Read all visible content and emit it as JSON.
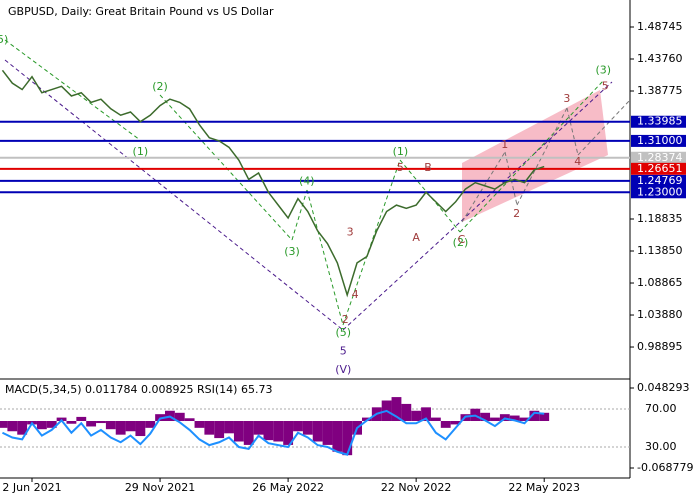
{
  "chart_data": {
    "type": "line",
    "title": "GBPUSD, Daily:  Great Britain Pound vs US Dollar",
    "categories": [
      null,
      null,
      null,
      "2 Jun 2021",
      null,
      null,
      null,
      null,
      null,
      null,
      null,
      null,
      null,
      null,
      null,
      null,
      "29 Nov 2021",
      null,
      null,
      null,
      null,
      null,
      null,
      null,
      null,
      null,
      null,
      null,
      null,
      "26 May 2022",
      null,
      null,
      null,
      null,
      null,
      null,
      null,
      null,
      null,
      null,
      null,
      null,
      "22 Nov 2022",
      null,
      null,
      null,
      null,
      null,
      null,
      null,
      null,
      null,
      null,
      null,
      null,
      "22 May 2023"
    ],
    "series": [
      {
        "name": "GBPUSD",
        "color": "#3c6b2c",
        "values": [
          1.42,
          1.4,
          1.39,
          1.41,
          1.385,
          1.39,
          1.395,
          1.38,
          1.385,
          1.37,
          1.375,
          1.36,
          1.35,
          1.355,
          1.34,
          1.35,
          1.365,
          1.375,
          1.37,
          1.36,
          1.335,
          1.315,
          1.31,
          1.3,
          1.28,
          1.25,
          1.26,
          1.23,
          1.21,
          1.19,
          1.22,
          1.2,
          1.17,
          1.15,
          1.12,
          1.07,
          1.12,
          1.13,
          1.17,
          1.2,
          1.21,
          1.205,
          1.21,
          1.23,
          1.215,
          1.2,
          1.215,
          1.235,
          1.245,
          1.24,
          1.235,
          1.245,
          1.25,
          1.245,
          1.265,
          1.27
        ]
      }
    ],
    "ylim": [
      0.9407,
      1.5217
    ],
    "yticks": [
      1.48745,
      {
        "value": 1.4376,
        "label": "1.43760"
      },
      1.38775,
      1.18835,
      {
        "value": 1.1385,
        "label": "1.13850"
      },
      1.08865,
      {
        "value": 1.0388,
        "label": "1.03880"
      },
      0.98895
    ],
    "levels": [
      {
        "value": 1.33985,
        "color": "#0000b4"
      },
      {
        "value": 1.31,
        "label": "1.31000",
        "color": "#0000b4"
      },
      {
        "value": 1.28374,
        "color": "#c0c0c0"
      },
      {
        "value": 1.26651,
        "color": "#e00000"
      },
      {
        "value": 1.24769,
        "color": "#0000b4"
      },
      {
        "value": 1.23,
        "label": "1.23000",
        "color": "#0000b4"
      }
    ],
    "annotations": [
      {
        "text": "(5)",
        "x": -0.2,
        "y": 1.467,
        "color": "#2a9a2a"
      },
      {
        "text": "(2)",
        "x": 16,
        "y": 1.394,
        "color": "#2a9a2a"
      },
      {
        "text": "(1)",
        "x": 14,
        "y": 1.293,
        "color": "#2a9a2a"
      },
      {
        "text": "(1)",
        "x": 40.4,
        "y": 1.293,
        "color": "#2a9a2a"
      },
      {
        "text": "(4)",
        "x": 30.9,
        "y": 1.247,
        "color": "#2a9a2a"
      },
      {
        "text": "(3)",
        "x": 29.4,
        "y": 1.137,
        "color": "#2a9a2a"
      },
      {
        "text": "(5)",
        "x": 34.6,
        "y": 1.011,
        "color": "#2a9a2a"
      },
      {
        "text": "(2)",
        "x": 46.5,
        "y": 1.151,
        "color": "#2a9a2a"
      },
      {
        "text": "(3)",
        "x": 61,
        "y": 1.42,
        "color": "#2a9a2a"
      },
      {
        "text": "5",
        "x": 40.4,
        "y": 1.268,
        "color": "#a03c3c"
      },
      {
        "text": "B",
        "x": 43.2,
        "y": 1.268,
        "color": "#a03c3c"
      },
      {
        "text": "A",
        "x": 42,
        "y": 1.159,
        "color": "#a03c3c"
      },
      {
        "text": "3",
        "x": 35.3,
        "y": 1.167,
        "color": "#a03c3c"
      },
      {
        "text": "4",
        "x": 35.8,
        "y": 1.07,
        "color": "#a03c3c"
      },
      {
        "text": "2",
        "x": 34.8,
        "y": 1.031,
        "color": "#a03c3c"
      },
      {
        "text": "C",
        "x": 46.6,
        "y": 1.156,
        "color": "#a03c3c"
      },
      {
        "text": "1",
        "x": 51,
        "y": 1.304,
        "color": "#a03c3c"
      },
      {
        "text": "2",
        "x": 52.2,
        "y": 1.196,
        "color": "#a03c3c"
      },
      {
        "text": "3",
        "x": 57.3,
        "y": 1.375,
        "color": "#a03c3c"
      },
      {
        "text": "4",
        "x": 58.4,
        "y": 1.277,
        "color": "#a03c3c"
      },
      {
        "text": "5",
        "x": 61.2,
        "y": 1.395,
        "color": "#a03c3c"
      },
      {
        "text": "5",
        "x": 34.6,
        "y": 0.982,
        "color": "#4b1b8c"
      },
      {
        "text": "(V)",
        "x": 34.6,
        "y": 0.953,
        "color": "#4b1b8c"
      }
    ],
    "indicator": {
      "label": "MACD(5,34,5) 0.011784 0.008925 RSI(14) 65.73",
      "ylim": [
        -0.0834,
        0.06
      ],
      "rsi_lim": [
        -2.6,
        100.5
      ],
      "yticks": [
        0.048293,
        -0.068779
      ],
      "rsi_ticks": [
        {
          "value": 70,
          "label": "70.00"
        },
        {
          "value": 30,
          "label": "30.00"
        }
      ],
      "histogram": {
        "color": "#800080",
        "values": [
          -0.01,
          -0.015,
          -0.02,
          -0.005,
          -0.012,
          -0.01,
          0.005,
          -0.004,
          0.006,
          -0.008,
          -0.003,
          -0.012,
          -0.02,
          -0.015,
          -0.022,
          -0.01,
          0.01,
          0.015,
          0.012,
          0.004,
          -0.01,
          -0.02,
          -0.025,
          -0.018,
          -0.03,
          -0.035,
          -0.02,
          -0.028,
          -0.03,
          -0.035,
          -0.015,
          -0.02,
          -0.03,
          -0.035,
          -0.045,
          -0.05,
          -0.02,
          0.005,
          0.02,
          0.03,
          0.035,
          0.025,
          0.015,
          0.02,
          0.005,
          -0.01,
          -0.005,
          0.01,
          0.018,
          0.012,
          0.005,
          0.01,
          0.008,
          0.005,
          0.015,
          0.012
        ]
      },
      "rsi": {
        "color": "#1e90ff",
        "values": [
          45,
          40,
          38,
          55,
          42,
          48,
          58,
          45,
          55,
          42,
          48,
          40,
          35,
          42,
          33,
          44,
          60,
          62,
          56,
          48,
          38,
          32,
          35,
          40,
          30,
          28,
          42,
          34,
          32,
          30,
          45,
          40,
          32,
          30,
          25,
          22,
          50,
          58,
          65,
          68,
          62,
          55,
          55,
          60,
          45,
          38,
          50,
          62,
          63,
          58,
          52,
          60,
          58,
          55,
          66,
          65
        ]
      }
    }
  }
}
